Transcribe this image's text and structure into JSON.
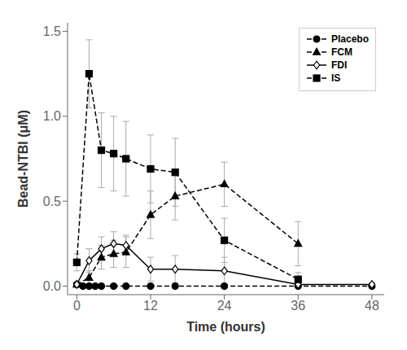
{
  "chart_data": {
    "type": "line",
    "xlabel": "Time (hours)",
    "ylabel": "Bead-NTBI (μM)",
    "xlim": [
      -1.5,
      50
    ],
    "ylim": [
      -0.05,
      1.55
    ],
    "xticks": [
      0,
      12,
      24,
      36,
      48
    ],
    "yticks": [
      {
        "value": 0,
        "label": "0.0"
      },
      0.5,
      {
        "value": 1,
        "label": "1.0"
      },
      1.5
    ],
    "grid": false,
    "legend": "upper right",
    "series": [
      {
        "name": "Placebo",
        "color": "#000000",
        "marker": "circle",
        "line_style": "dashed",
        "x": [
          0,
          1,
          2,
          3,
          4,
          6,
          8,
          12,
          16,
          24,
          36,
          48
        ],
        "values": [
          0.01,
          0.0,
          0.0,
          0.0,
          0.0,
          0.0,
          0.0,
          0.0,
          0.0,
          0.0,
          0.0,
          0.0
        ],
        "errors": [
          0.01,
          0.0,
          0.0,
          0.0,
          0.0,
          0.0,
          0.0,
          0.0,
          0.0,
          0.0,
          0.0,
          0.0
        ]
      },
      {
        "name": "FCM",
        "color": "#000000",
        "marker": "triangle",
        "line_style": "dashed",
        "x": [
          0,
          2,
          4,
          6,
          8,
          12,
          16,
          24,
          36
        ],
        "values": [
          0.01,
          0.05,
          0.17,
          0.19,
          0.2,
          0.42,
          0.53,
          0.6,
          0.25
        ],
        "errors": [
          0.01,
          0.04,
          0.07,
          0.08,
          0.09,
          0.14,
          0.14,
          0.13,
          0.13
        ]
      },
      {
        "name": "FDI",
        "color": "#000000",
        "marker": "diamond-open",
        "line_style": "solid",
        "x": [
          0,
          2,
          4,
          6,
          8,
          12,
          16,
          24,
          36,
          48
        ],
        "values": [
          0.01,
          0.15,
          0.22,
          0.25,
          0.24,
          0.1,
          0.1,
          0.09,
          0.01,
          0.01
        ],
        "errors": [
          0.01,
          0.07,
          0.07,
          0.07,
          0.06,
          0.07,
          0.08,
          0.08,
          0.01,
          0.01
        ]
      },
      {
        "name": "IS",
        "color": "#000000",
        "marker": "square",
        "line_style": "dashed",
        "x": [
          0,
          2,
          4,
          6,
          8,
          12,
          16,
          24,
          36
        ],
        "values": [
          0.14,
          1.25,
          0.8,
          0.78,
          0.75,
          0.69,
          0.67,
          0.27,
          0.04
        ],
        "errors": [
          0.05,
          0.2,
          0.22,
          0.22,
          0.22,
          0.2,
          0.2,
          0.13,
          0.04
        ]
      }
    ]
  }
}
